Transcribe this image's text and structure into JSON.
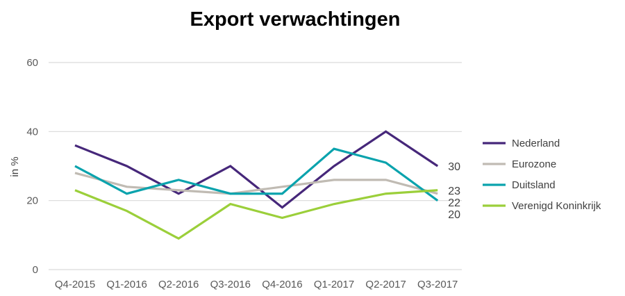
{
  "chart_data": {
    "type": "line",
    "title": "Export verwachtingen",
    "ylabel": "in %",
    "xlabel": "",
    "ylim": [
      0,
      60
    ],
    "yticks": [
      0,
      20,
      40,
      60
    ],
    "grid": true,
    "legend": "right",
    "categories": [
      "Q4-2015",
      "Q1-2016",
      "Q2-2016",
      "Q3-2016",
      "Q4-2016",
      "Q1-2017",
      "Q2-2017",
      "Q3-2017"
    ],
    "series": [
      {
        "name": "Nederland",
        "color": "#46277a",
        "values": [
          36,
          30,
          22,
          30,
          18,
          30,
          40,
          30
        ],
        "end_label": "30"
      },
      {
        "name": "Eurozone",
        "color": "#c0bbb3",
        "values": [
          28,
          24,
          23,
          22,
          24,
          26,
          26,
          22
        ],
        "end_label": "22"
      },
      {
        "name": "Duitsland",
        "color": "#0aa3ad",
        "values": [
          30,
          22,
          26,
          22,
          22,
          35,
          31,
          20
        ],
        "end_label": "20"
      },
      {
        "name": "Verenigd Koninkrijk",
        "color": "#9bcf3a",
        "values": [
          23,
          17,
          9,
          19,
          15,
          19,
          22,
          23
        ],
        "end_label": "23"
      }
    ]
  }
}
